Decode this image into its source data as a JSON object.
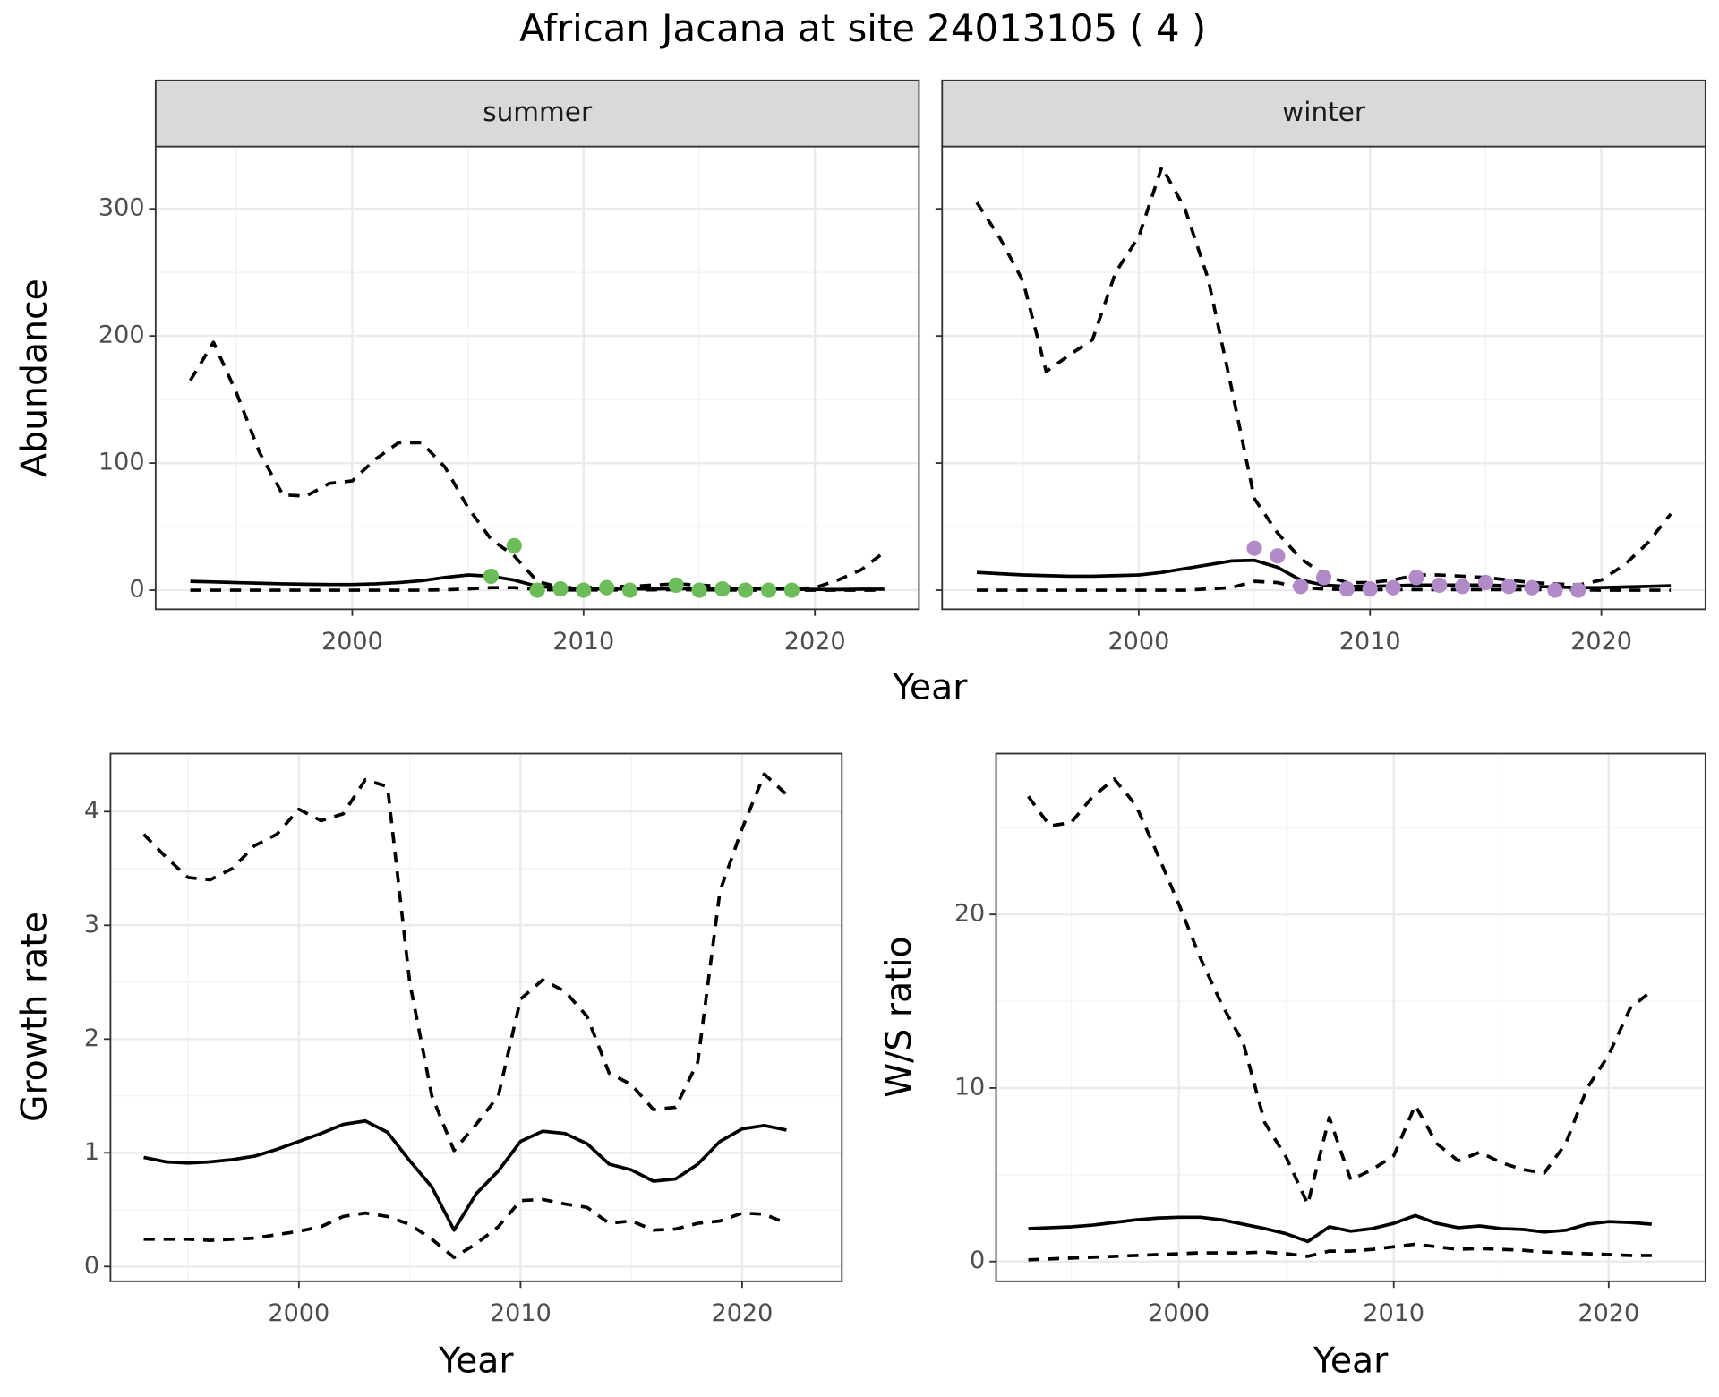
{
  "title": "African Jacana at site 24013105 ( 4 )",
  "chart_data": [
    {
      "type": "line",
      "xlabel": "Year",
      "ylabel": "Abundance",
      "xlim": [
        1991.5,
        2024.5
      ],
      "xticks": [
        2000,
        2010,
        2020
      ],
      "xminor": [
        1995,
        2005,
        2015
      ],
      "ylim": [
        -15,
        349
      ],
      "yticks": [
        0,
        100,
        200,
        300
      ],
      "yminor": [
        50,
        150,
        250
      ],
      "grid": true,
      "panels": [
        {
          "strip": "summer",
          "x": [
            1993,
            1994,
            1995,
            1996,
            1997,
            1998,
            1999,
            2000,
            2001,
            2002,
            2003,
            2004,
            2005,
            2006,
            2007,
            2008,
            2009,
            2010,
            2011,
            2012,
            2013,
            2014,
            2015,
            2016,
            2017,
            2018,
            2019,
            2020,
            2021,
            2022,
            2023
          ],
          "series": [
            {
              "style": "dashed",
              "color": "#000000",
              "values": [
                165,
                195,
                155,
                108,
                75,
                74,
                84,
                86,
                103,
                116,
                116,
                97,
                65,
                40,
                27,
                7,
                2,
                2,
                3,
                3,
                4,
                5,
                4,
                3,
                2,
                1,
                1,
                2,
                8,
                16,
                30
              ]
            },
            {
              "style": "solid",
              "color": "#000000",
              "values": [
                7,
                6.5,
                6,
                5.5,
                5,
                4.7,
                4.5,
                4.5,
                5,
                6,
                7.5,
                10,
                12,
                11,
                8,
                3,
                1.5,
                1,
                1,
                1,
                1,
                1.2,
                1.2,
                1,
                1,
                1,
                0.8,
                0.6,
                0.5,
                0.8,
                0.8
              ]
            },
            {
              "style": "dashed",
              "color": "#000000",
              "values": [
                0,
                0,
                0,
                0,
                0,
                0,
                0,
                0,
                0,
                0,
                0,
                0.3,
                1,
                2,
                2,
                0.5,
                0.2,
                0.2,
                0.2,
                0.2,
                0.3,
                0.5,
                0.3,
                0.2,
                0.1,
                0,
                0,
                0,
                0,
                0,
                0
              ]
            }
          ],
          "points": {
            "color": "#6cbd5a",
            "x": [
              2006,
              2007,
              2008,
              2009,
              2010,
              2011,
              2012,
              2014,
              2015,
              2016,
              2017,
              2018,
              2019
            ],
            "values": [
              11,
              35,
              0,
              1,
              0,
              2,
              0,
              4,
              0,
              1,
              0,
              0,
              0
            ]
          }
        },
        {
          "strip": "winter",
          "x": [
            1993,
            1994,
            1995,
            1996,
            1997,
            1998,
            1999,
            2000,
            2001,
            2002,
            2003,
            2004,
            2005,
            2006,
            2007,
            2008,
            2009,
            2010,
            2011,
            2012,
            2013,
            2014,
            2015,
            2016,
            2017,
            2018,
            2019,
            2020,
            2021,
            2022,
            2023
          ],
          "series": [
            {
              "style": "dashed",
              "color": "#000000",
              "values": [
                305,
                277,
                243,
                172,
                185,
                197,
                250,
                278,
                333,
                300,
                245,
                160,
                72,
                45,
                25,
                12,
                6,
                6,
                8,
                12,
                12,
                11,
                10,
                8,
                6,
                5,
                4,
                8,
                20,
                37,
                60
              ]
            },
            {
              "style": "solid",
              "color": "#000000",
              "values": [
                14,
                13,
                12,
                11.5,
                11,
                11,
                11.5,
                12,
                14,
                17,
                20,
                23,
                23.5,
                18,
                8,
                4,
                3,
                3,
                3.5,
                4,
                4,
                4,
                4,
                3.5,
                3,
                2.5,
                2,
                2,
                2.5,
                3,
                3.5
              ]
            },
            {
              "style": "dashed",
              "color": "#000000",
              "values": [
                0,
                0,
                0,
                0,
                0,
                0,
                0,
                0,
                0,
                0,
                1,
                2,
                7,
                6,
                2,
                1,
                0.5,
                0.5,
                0.5,
                0.5,
                0.5,
                0.5,
                0.5,
                0.5,
                0.5,
                0.5,
                0.3,
                0,
                0,
                0,
                0
              ]
            }
          ],
          "points": {
            "color": "#b18ac8",
            "x": [
              2005,
              2006,
              2007,
              2008,
              2009,
              2010,
              2011,
              2012,
              2013,
              2014,
              2015,
              2016,
              2017,
              2018,
              2019
            ],
            "values": [
              33,
              27,
              3,
              10,
              1,
              1,
              2,
              10,
              4,
              3,
              6,
              3,
              2,
              0,
              0
            ]
          }
        }
      ]
    },
    {
      "type": "line",
      "xlabel": "Year",
      "ylabel": "Growth rate",
      "xlim": [
        1991.5,
        2024.5
      ],
      "xticks": [
        2000,
        2010,
        2020
      ],
      "xminor": [
        1995,
        2005,
        2015
      ],
      "ylim": [
        -0.13,
        4.51
      ],
      "yticks": [
        0,
        1,
        2,
        3,
        4
      ],
      "yminor": [
        0.5,
        1.5,
        2.5,
        3.5
      ],
      "grid": true,
      "panels": [
        {
          "x": [
            1993,
            1994,
            1995,
            1996,
            1997,
            1998,
            1999,
            2000,
            2001,
            2002,
            2003,
            2004,
            2005,
            2006,
            2007,
            2008,
            2009,
            2010,
            2011,
            2012,
            2013,
            2014,
            2015,
            2016,
            2017,
            2018,
            2019,
            2020,
            2021,
            2022
          ],
          "series": [
            {
              "style": "dashed",
              "color": "#000000",
              "values": [
                3.8,
                3.6,
                3.42,
                3.4,
                3.5,
                3.7,
                3.8,
                4.02,
                3.92,
                3.98,
                4.28,
                4.22,
                2.5,
                1.5,
                1.02,
                1.25,
                1.5,
                2.35,
                2.52,
                2.42,
                2.2,
                1.7,
                1.6,
                1.38,
                1.4,
                1.8,
                3.3,
                3.85,
                4.33,
                4.15
              ]
            },
            {
              "style": "solid",
              "color": "#000000",
              "values": [
                0.96,
                0.92,
                0.91,
                0.92,
                0.94,
                0.97,
                1.03,
                1.1,
                1.17,
                1.25,
                1.28,
                1.18,
                0.93,
                0.7,
                0.32,
                0.64,
                0.84,
                1.1,
                1.19,
                1.17,
                1.08,
                0.9,
                0.85,
                0.75,
                0.77,
                0.9,
                1.1,
                1.21,
                1.24,
                1.2
              ]
            },
            {
              "style": "dashed",
              "color": "#000000",
              "values": [
                0.24,
                0.24,
                0.24,
                0.23,
                0.24,
                0.25,
                0.28,
                0.31,
                0.35,
                0.44,
                0.47,
                0.44,
                0.37,
                0.24,
                0.08,
                0.2,
                0.35,
                0.58,
                0.59,
                0.55,
                0.52,
                0.38,
                0.4,
                0.32,
                0.33,
                0.38,
                0.4,
                0.47,
                0.46,
                0.38
              ]
            }
          ]
        }
      ]
    },
    {
      "type": "line",
      "xlabel": "Year",
      "ylabel": "W/S ratio",
      "xlim": [
        1991.5,
        2024.5
      ],
      "xticks": [
        2000,
        2010,
        2020
      ],
      "xminor": [
        1995,
        2005,
        2015
      ],
      "ylim": [
        -1.14,
        29.27
      ],
      "yticks": [
        0,
        10,
        20
      ],
      "yminor": [
        5,
        15,
        25
      ],
      "grid": true,
      "panels": [
        {
          "x": [
            1993,
            1994,
            1995,
            1996,
            1997,
            1998,
            1999,
            2000,
            2001,
            2002,
            2003,
            2004,
            2005,
            2006,
            2007,
            2008,
            2009,
            2010,
            2011,
            2012,
            2013,
            2014,
            2015,
            2016,
            2017,
            2018,
            2019,
            2020,
            2021,
            2022
          ],
          "series": [
            {
              "style": "dashed",
              "color": "#000000",
              "values": [
                26.8,
                25.1,
                25.3,
                26.8,
                27.8,
                26.3,
                23.5,
                20.6,
                17.5,
                14.8,
                12.6,
                8,
                6,
                3.3,
                8.3,
                4.7,
                5.3,
                6.1,
                9,
                6.8,
                5.8,
                6.3,
                5.7,
                5.3,
                5.1,
                6.8,
                10,
                11.9,
                14.6,
                15.6
              ]
            },
            {
              "style": "solid",
              "color": "#000000",
              "values": [
                1.9,
                1.95,
                2.0,
                2.1,
                2.25,
                2.4,
                2.5,
                2.55,
                2.55,
                2.4,
                2.15,
                1.9,
                1.6,
                1.15,
                2.0,
                1.75,
                1.9,
                2.2,
                2.65,
                2.2,
                1.95,
                2.05,
                1.9,
                1.85,
                1.7,
                1.8,
                2.15,
                2.3,
                2.25,
                2.15
              ]
            },
            {
              "style": "dashed",
              "color": "#000000",
              "values": [
                0.1,
                0.15,
                0.2,
                0.25,
                0.3,
                0.35,
                0.4,
                0.45,
                0.5,
                0.5,
                0.5,
                0.55,
                0.45,
                0.3,
                0.6,
                0.6,
                0.7,
                0.85,
                1.0,
                0.85,
                0.7,
                0.75,
                0.7,
                0.65,
                0.55,
                0.5,
                0.45,
                0.4,
                0.35,
                0.35
              ]
            }
          ]
        }
      ]
    }
  ]
}
